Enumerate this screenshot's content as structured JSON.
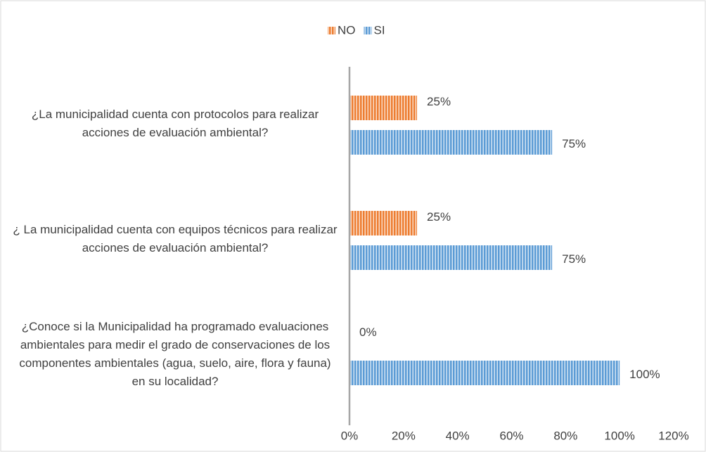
{
  "chart_data": {
    "type": "bar",
    "orientation": "horizontal",
    "categories": [
      "¿La municipalidad cuenta con protocolos para realizar acciones de evaluación ambiental?",
      "¿ La municipalidad cuenta con equipos técnicos para realizar acciones de evaluación ambiental?",
      "¿Conoce si la Municipalidad ha programado evaluaciones ambientales para medir el grado de conservaciones de los componentes ambientales (agua, suelo, aire, flora y fauna) en su localidad?"
    ],
    "series": [
      {
        "name": "NO",
        "color": "#ED7D31",
        "values": [
          25,
          25,
          0
        ],
        "value_labels": [
          "25%",
          "25%",
          "0%"
        ]
      },
      {
        "name": "SI",
        "color": "#5B9BD5",
        "values": [
          75,
          75,
          100
        ],
        "value_labels": [
          "75%",
          "75%",
          "100%"
        ]
      }
    ],
    "xlim": [
      0,
      120
    ],
    "xticks": [
      {
        "value": 0,
        "label": "0%"
      },
      {
        "value": 20,
        "label": "20%"
      },
      {
        "value": 40,
        "label": "40%"
      },
      {
        "value": 60,
        "label": "60%"
      },
      {
        "value": 80,
        "label": "80%"
      },
      {
        "value": 100,
        "label": "100%"
      },
      {
        "value": 120,
        "label": "120%"
      }
    ],
    "legend": "top",
    "pattern": "vertical-hatch"
  }
}
